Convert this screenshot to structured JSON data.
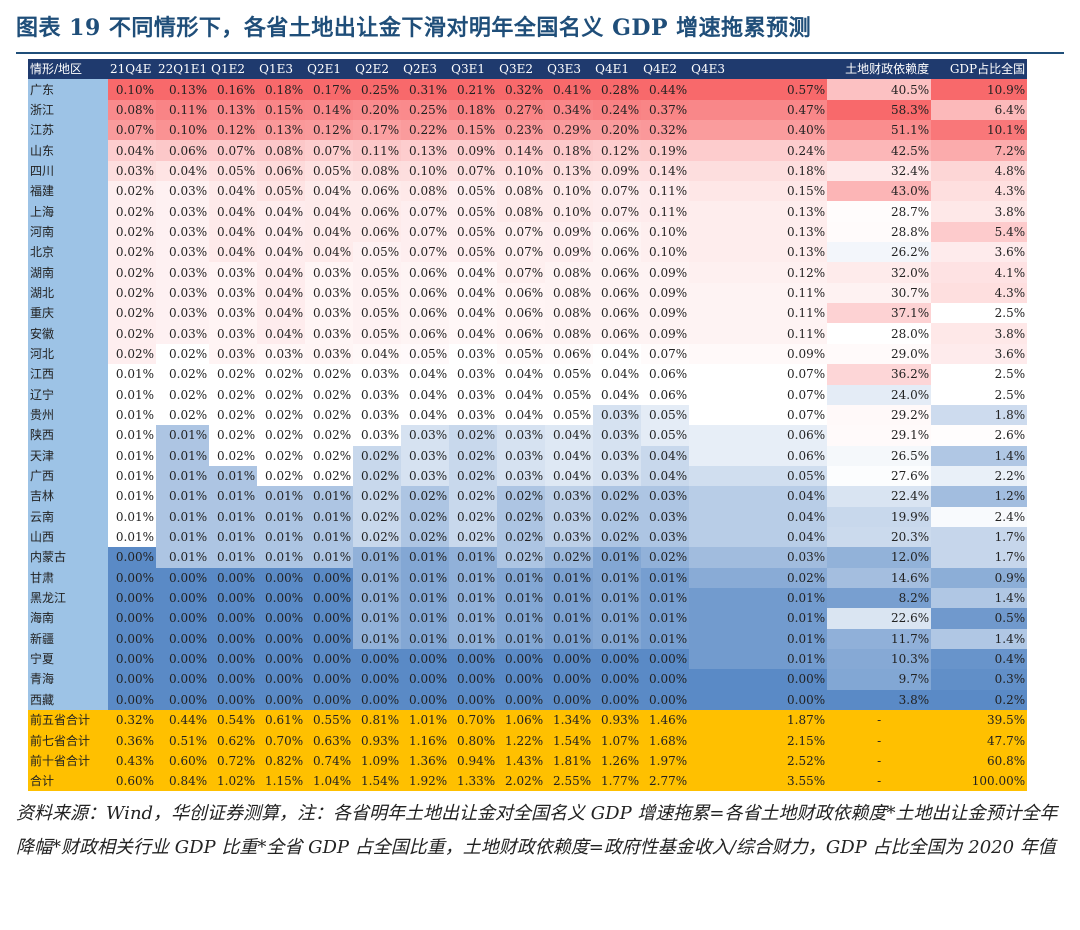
{
  "title": "图表 19   不同情形下，各省土地出让金下滑对明年全国名义 GDP 增速拖累预测",
  "headers": [
    "情形/地区",
    "21Q4E",
    "22Q1E1",
    "Q1E2",
    "Q1E3",
    "Q2E1",
    "Q2E2",
    "Q2E3",
    "Q3E1",
    "Q3E2",
    "Q3E3",
    "Q4E1",
    "Q4E2",
    "Q4E3",
    "",
    "土地财政依赖度",
    "GDP占比全国"
  ],
  "rows": [
    [
      "广东",
      "0.10%",
      "0.13%",
      "0.16%",
      "0.18%",
      "0.17%",
      "0.25%",
      "0.31%",
      "0.21%",
      "0.32%",
      "0.41%",
      "0.28%",
      "0.44%",
      "0.57%",
      "40.5%",
      "10.9%"
    ],
    [
      "浙江",
      "0.08%",
      "0.11%",
      "0.13%",
      "0.15%",
      "0.14%",
      "0.20%",
      "0.25%",
      "0.18%",
      "0.27%",
      "0.34%",
      "0.24%",
      "0.37%",
      "0.47%",
      "58.3%",
      "6.4%"
    ],
    [
      "江苏",
      "0.07%",
      "0.10%",
      "0.12%",
      "0.13%",
      "0.12%",
      "0.17%",
      "0.22%",
      "0.15%",
      "0.23%",
      "0.29%",
      "0.20%",
      "0.32%",
      "0.40%",
      "51.1%",
      "10.1%"
    ],
    [
      "山东",
      "0.04%",
      "0.06%",
      "0.07%",
      "0.08%",
      "0.07%",
      "0.11%",
      "0.13%",
      "0.09%",
      "0.14%",
      "0.18%",
      "0.12%",
      "0.19%",
      "0.24%",
      "42.5%",
      "7.2%"
    ],
    [
      "四川",
      "0.03%",
      "0.04%",
      "0.05%",
      "0.06%",
      "0.05%",
      "0.08%",
      "0.10%",
      "0.07%",
      "0.10%",
      "0.13%",
      "0.09%",
      "0.14%",
      "0.18%",
      "32.4%",
      "4.8%"
    ],
    [
      "福建",
      "0.02%",
      "0.03%",
      "0.04%",
      "0.05%",
      "0.04%",
      "0.06%",
      "0.08%",
      "0.05%",
      "0.08%",
      "0.10%",
      "0.07%",
      "0.11%",
      "0.15%",
      "43.0%",
      "4.3%"
    ],
    [
      "上海",
      "0.02%",
      "0.03%",
      "0.04%",
      "0.04%",
      "0.04%",
      "0.06%",
      "0.07%",
      "0.05%",
      "0.08%",
      "0.10%",
      "0.07%",
      "0.11%",
      "0.13%",
      "28.7%",
      "3.8%"
    ],
    [
      "河南",
      "0.02%",
      "0.03%",
      "0.04%",
      "0.04%",
      "0.04%",
      "0.06%",
      "0.07%",
      "0.05%",
      "0.07%",
      "0.09%",
      "0.06%",
      "0.10%",
      "0.13%",
      "28.8%",
      "5.4%"
    ],
    [
      "北京",
      "0.02%",
      "0.03%",
      "0.04%",
      "0.04%",
      "0.04%",
      "0.05%",
      "0.07%",
      "0.05%",
      "0.07%",
      "0.09%",
      "0.06%",
      "0.10%",
      "0.13%",
      "26.2%",
      "3.6%"
    ],
    [
      "湖南",
      "0.02%",
      "0.03%",
      "0.03%",
      "0.04%",
      "0.03%",
      "0.05%",
      "0.06%",
      "0.04%",
      "0.07%",
      "0.08%",
      "0.06%",
      "0.09%",
      "0.12%",
      "32.0%",
      "4.1%"
    ],
    [
      "湖北",
      "0.02%",
      "0.03%",
      "0.03%",
      "0.04%",
      "0.03%",
      "0.05%",
      "0.06%",
      "0.04%",
      "0.06%",
      "0.08%",
      "0.06%",
      "0.09%",
      "0.11%",
      "30.7%",
      "4.3%"
    ],
    [
      "重庆",
      "0.02%",
      "0.03%",
      "0.03%",
      "0.04%",
      "0.03%",
      "0.05%",
      "0.06%",
      "0.04%",
      "0.06%",
      "0.08%",
      "0.06%",
      "0.09%",
      "0.11%",
      "37.1%",
      "2.5%"
    ],
    [
      "安徽",
      "0.02%",
      "0.03%",
      "0.03%",
      "0.04%",
      "0.03%",
      "0.05%",
      "0.06%",
      "0.04%",
      "0.06%",
      "0.08%",
      "0.06%",
      "0.09%",
      "0.11%",
      "28.0%",
      "3.8%"
    ],
    [
      "河北",
      "0.02%",
      "0.02%",
      "0.03%",
      "0.03%",
      "0.03%",
      "0.04%",
      "0.05%",
      "0.03%",
      "0.05%",
      "0.06%",
      "0.04%",
      "0.07%",
      "0.09%",
      "29.0%",
      "3.6%"
    ],
    [
      "江西",
      "0.01%",
      "0.02%",
      "0.02%",
      "0.02%",
      "0.02%",
      "0.03%",
      "0.04%",
      "0.03%",
      "0.04%",
      "0.05%",
      "0.04%",
      "0.06%",
      "0.07%",
      "36.2%",
      "2.5%"
    ],
    [
      "辽宁",
      "0.01%",
      "0.02%",
      "0.02%",
      "0.02%",
      "0.02%",
      "0.03%",
      "0.04%",
      "0.03%",
      "0.04%",
      "0.05%",
      "0.04%",
      "0.06%",
      "0.07%",
      "24.0%",
      "2.5%"
    ],
    [
      "贵州",
      "0.01%",
      "0.02%",
      "0.02%",
      "0.02%",
      "0.02%",
      "0.03%",
      "0.04%",
      "0.03%",
      "0.04%",
      "0.05%",
      "0.03%",
      "0.05%",
      "0.07%",
      "29.2%",
      "1.8%"
    ],
    [
      "陕西",
      "0.01%",
      "0.01%",
      "0.02%",
      "0.02%",
      "0.02%",
      "0.03%",
      "0.03%",
      "0.02%",
      "0.03%",
      "0.04%",
      "0.03%",
      "0.05%",
      "0.06%",
      "29.1%",
      "2.6%"
    ],
    [
      "天津",
      "0.01%",
      "0.01%",
      "0.02%",
      "0.02%",
      "0.02%",
      "0.02%",
      "0.03%",
      "0.02%",
      "0.03%",
      "0.04%",
      "0.03%",
      "0.04%",
      "0.06%",
      "26.5%",
      "1.4%"
    ],
    [
      "广西",
      "0.01%",
      "0.01%",
      "0.01%",
      "0.02%",
      "0.02%",
      "0.02%",
      "0.03%",
      "0.02%",
      "0.03%",
      "0.04%",
      "0.03%",
      "0.04%",
      "0.05%",
      "27.6%",
      "2.2%"
    ],
    [
      "吉林",
      "0.01%",
      "0.01%",
      "0.01%",
      "0.01%",
      "0.01%",
      "0.02%",
      "0.02%",
      "0.02%",
      "0.02%",
      "0.03%",
      "0.02%",
      "0.03%",
      "0.04%",
      "22.4%",
      "1.2%"
    ],
    [
      "云南",
      "0.01%",
      "0.01%",
      "0.01%",
      "0.01%",
      "0.01%",
      "0.02%",
      "0.02%",
      "0.02%",
      "0.02%",
      "0.03%",
      "0.02%",
      "0.03%",
      "0.04%",
      "19.9%",
      "2.4%"
    ],
    [
      "山西",
      "0.01%",
      "0.01%",
      "0.01%",
      "0.01%",
      "0.01%",
      "0.02%",
      "0.02%",
      "0.02%",
      "0.02%",
      "0.03%",
      "0.02%",
      "0.03%",
      "0.04%",
      "20.3%",
      "1.7%"
    ],
    [
      "内蒙古",
      "0.00%",
      "0.01%",
      "0.01%",
      "0.01%",
      "0.01%",
      "0.01%",
      "0.01%",
      "0.01%",
      "0.02%",
      "0.02%",
      "0.01%",
      "0.02%",
      "0.03%",
      "12.0%",
      "1.7%"
    ],
    [
      "甘肃",
      "0.00%",
      "0.00%",
      "0.00%",
      "0.00%",
      "0.00%",
      "0.01%",
      "0.01%",
      "0.01%",
      "0.01%",
      "0.01%",
      "0.01%",
      "0.01%",
      "0.02%",
      "14.6%",
      "0.9%"
    ],
    [
      "黑龙江",
      "0.00%",
      "0.00%",
      "0.00%",
      "0.00%",
      "0.00%",
      "0.01%",
      "0.01%",
      "0.01%",
      "0.01%",
      "0.01%",
      "0.01%",
      "0.01%",
      "0.01%",
      "8.2%",
      "1.4%"
    ],
    [
      "海南",
      "0.00%",
      "0.00%",
      "0.00%",
      "0.00%",
      "0.00%",
      "0.01%",
      "0.01%",
      "0.01%",
      "0.01%",
      "0.01%",
      "0.01%",
      "0.01%",
      "0.01%",
      "22.6%",
      "0.5%"
    ],
    [
      "新疆",
      "0.00%",
      "0.00%",
      "0.00%",
      "0.00%",
      "0.00%",
      "0.01%",
      "0.01%",
      "0.01%",
      "0.01%",
      "0.01%",
      "0.01%",
      "0.01%",
      "0.01%",
      "11.7%",
      "1.4%"
    ],
    [
      "宁夏",
      "0.00%",
      "0.00%",
      "0.00%",
      "0.00%",
      "0.00%",
      "0.00%",
      "0.00%",
      "0.00%",
      "0.00%",
      "0.00%",
      "0.00%",
      "0.00%",
      "0.01%",
      "10.3%",
      "0.4%"
    ],
    [
      "青海",
      "0.00%",
      "0.00%",
      "0.00%",
      "0.00%",
      "0.00%",
      "0.00%",
      "0.00%",
      "0.00%",
      "0.00%",
      "0.00%",
      "0.00%",
      "0.00%",
      "0.00%",
      "9.7%",
      "0.3%"
    ],
    [
      "西藏",
      "0.00%",
      "0.00%",
      "0.00%",
      "0.00%",
      "0.00%",
      "0.00%",
      "0.00%",
      "0.00%",
      "0.00%",
      "0.00%",
      "0.00%",
      "0.00%",
      "0.00%",
      "3.8%",
      "0.2%"
    ]
  ],
  "totals": [
    [
      "前五省合计",
      "0.32%",
      "0.44%",
      "0.54%",
      "0.61%",
      "0.55%",
      "0.81%",
      "1.01%",
      "0.70%",
      "1.06%",
      "1.34%",
      "0.93%",
      "1.46%",
      "1.87%",
      "-",
      "39.5%"
    ],
    [
      "前七省合计",
      "0.36%",
      "0.51%",
      "0.62%",
      "0.70%",
      "0.63%",
      "0.93%",
      "1.16%",
      "0.80%",
      "1.22%",
      "1.54%",
      "1.07%",
      "1.68%",
      "2.15%",
      "-",
      "47.7%"
    ],
    [
      "前十省合计",
      "0.43%",
      "0.60%",
      "0.72%",
      "0.82%",
      "0.74%",
      "1.09%",
      "1.36%",
      "0.94%",
      "1.43%",
      "1.81%",
      "1.26%",
      "1.97%",
      "2.52%",
      "-",
      "60.8%"
    ],
    [
      "合计",
      "0.60%",
      "0.84%",
      "1.02%",
      "1.15%",
      "1.04%",
      "1.54%",
      "1.92%",
      "1.33%",
      "2.02%",
      "2.55%",
      "1.77%",
      "2.77%",
      "3.55%",
      "-",
      "100.00%"
    ]
  ],
  "source_note": "资料来源：Wind，华创证券测算，注：各省明年土地出让金对全国名义 GDP 增速拖累=各省土地财政依赖度*土地出让金预计全年降幅*财政相关行业 GDP 比重*全省 GDP 占全国比重，土地财政依赖度=政府性基金收入/综合财力，GDP 占比全国为 2020 年值",
  "colors": {
    "header_bg": "#1f3a6e",
    "totals_bg": "#ffc000",
    "high": "#f8696b",
    "mid": "#ffffff",
    "low": "#5a8ac6",
    "title": "#1f4e79"
  }
}
